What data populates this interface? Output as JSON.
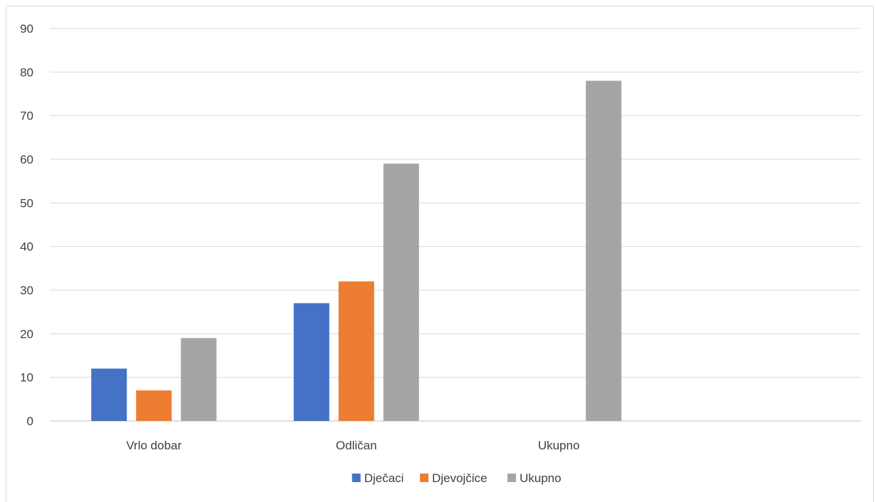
{
  "chart_data": {
    "type": "bar",
    "categories": [
      "Vrlo dobar",
      "Odličan",
      "Ukupno"
    ],
    "series": [
      {
        "name": "Dječaci",
        "color": "#4472c4",
        "values": [
          12,
          27,
          null
        ]
      },
      {
        "name": "Djevojčice",
        "color": "#ed7d31",
        "values": [
          7,
          32,
          null
        ]
      },
      {
        "name": "Ukupno",
        "color": "#a5a5a5",
        "values": [
          19,
          59,
          78
        ]
      }
    ],
    "title": "",
    "xlabel": "",
    "ylabel": "",
    "ylim": [
      0,
      90
    ],
    "yticks": [
      0,
      10,
      20,
      30,
      40,
      50,
      60,
      70,
      80,
      90
    ],
    "grid": true,
    "legend": "bottom"
  }
}
